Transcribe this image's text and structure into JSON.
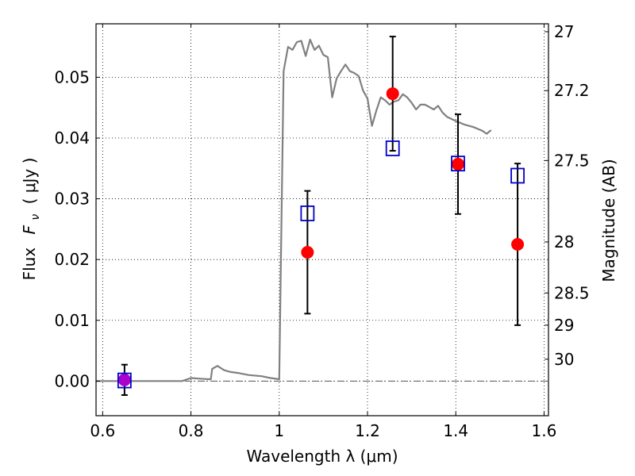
{
  "chart_data": {
    "type": "scatter",
    "xlabel": "Wavelength  λ (μm)",
    "ylabel_prefix": "Flux",
    "ylabel_symbol": "F",
    "ylabel_subscript": "ν",
    "ylabel_units": "( μJy )",
    "ylabel_right": "Magnitude (AB)",
    "xlim": [
      0.585,
      1.61
    ],
    "ylim": [
      -0.0057,
      0.0588
    ],
    "grid": true,
    "x_ticks": [
      {
        "value": 0.6,
        "label": "0.6"
      },
      {
        "value": 0.8,
        "label": "0.8"
      },
      {
        "value": 1.0,
        "label": "1"
      },
      {
        "value": 1.2,
        "label": "1.2"
      },
      {
        "value": 1.4,
        "label": "1.4"
      },
      {
        "value": 1.6,
        "label": "1.6"
      }
    ],
    "y_ticks": [
      {
        "value": 0.0,
        "label": "0.00"
      },
      {
        "value": 0.01,
        "label": "0.01"
      },
      {
        "value": 0.02,
        "label": "0.02"
      },
      {
        "value": 0.03,
        "label": "0.03"
      },
      {
        "value": 0.04,
        "label": "0.04"
      },
      {
        "value": 0.05,
        "label": "0.05"
      }
    ],
    "right_ticks": [
      {
        "flux": 0.0575,
        "label": "27"
      },
      {
        "flux": 0.0478,
        "label": "27.2"
      },
      {
        "flux": 0.0363,
        "label": "27.5"
      },
      {
        "flux": 0.0229,
        "label": "28"
      },
      {
        "flux": 0.0145,
        "label": "28.5"
      },
      {
        "flux": 0.0092,
        "label": "29"
      },
      {
        "flux": 0.0036,
        "label": "30"
      }
    ],
    "zero_line": 0.0,
    "model_sed": {
      "color": "#808080",
      "points": [
        [
          0.585,
          0.0
        ],
        [
          0.78,
          0.0
        ],
        [
          0.8,
          0.0005
        ],
        [
          0.82,
          0.0004
        ],
        [
          0.84,
          0.0003
        ],
        [
          0.845,
          0.0003
        ],
        [
          0.848,
          0.002
        ],
        [
          0.86,
          0.0025
        ],
        [
          0.875,
          0.0018
        ],
        [
          0.89,
          0.0015
        ],
        [
          0.91,
          0.0013
        ],
        [
          0.93,
          0.001
        ],
        [
          0.96,
          0.0008
        ],
        [
          0.98,
          0.0005
        ],
        [
          1.0,
          0.0003
        ],
        [
          1.01,
          0.051
        ],
        [
          1.02,
          0.055
        ],
        [
          1.03,
          0.0545
        ],
        [
          1.04,
          0.0558
        ],
        [
          1.05,
          0.056
        ],
        [
          1.06,
          0.0535
        ],
        [
          1.07,
          0.0562
        ],
        [
          1.08,
          0.0545
        ],
        [
          1.09,
          0.0552
        ],
        [
          1.1,
          0.0537
        ],
        [
          1.11,
          0.0533
        ],
        [
          1.12,
          0.0467
        ],
        [
          1.13,
          0.0498
        ],
        [
          1.14,
          0.051
        ],
        [
          1.15,
          0.0521
        ],
        [
          1.16,
          0.051
        ],
        [
          1.17,
          0.0507
        ],
        [
          1.18,
          0.0502
        ],
        [
          1.19,
          0.0478
        ],
        [
          1.2,
          0.0465
        ],
        [
          1.21,
          0.042
        ],
        [
          1.22,
          0.0445
        ],
        [
          1.23,
          0.0467
        ],
        [
          1.24,
          0.0462
        ],
        [
          1.25,
          0.0455
        ],
        [
          1.26,
          0.046
        ],
        [
          1.27,
          0.0462
        ],
        [
          1.28,
          0.0472
        ],
        [
          1.29,
          0.0467
        ],
        [
          1.3,
          0.0458
        ],
        [
          1.31,
          0.0447
        ],
        [
          1.32,
          0.0455
        ],
        [
          1.33,
          0.0455
        ],
        [
          1.34,
          0.0451
        ],
        [
          1.35,
          0.0447
        ],
        [
          1.36,
          0.0453
        ],
        [
          1.37,
          0.0442
        ],
        [
          1.38,
          0.0435
        ],
        [
          1.4,
          0.0428
        ],
        [
          1.42,
          0.0422
        ],
        [
          1.44,
          0.0418
        ],
        [
          1.45,
          0.0415
        ],
        [
          1.46,
          0.0412
        ],
        [
          1.47,
          0.0407
        ],
        [
          1.48,
          0.0413
        ]
      ]
    },
    "observed": {
      "color": "#ff0000",
      "points": [
        {
          "x": 0.6495,
          "y": 0.0002,
          "yerr": 0.0025
        },
        {
          "x": 1.064,
          "y": 0.0212,
          "yerr": 0.0101
        },
        {
          "x": 1.257,
          "y": 0.0473,
          "yerr": 0.0094
        },
        {
          "x": 1.405,
          "y": 0.0357,
          "yerr": 0.0082
        },
        {
          "x": 1.54,
          "y": 0.0225,
          "yerr": 0.0133
        }
      ]
    },
    "model_photometry": {
      "color": "#0000cc",
      "points": [
        {
          "x": 0.6495,
          "y": 0.0001
        },
        {
          "x": 1.064,
          "y": 0.0276
        },
        {
          "x": 1.257,
          "y": 0.0383
        },
        {
          "x": 1.405,
          "y": 0.0358
        },
        {
          "x": 1.54,
          "y": 0.0338
        }
      ]
    },
    "blend_color": "#aa00cc"
  }
}
